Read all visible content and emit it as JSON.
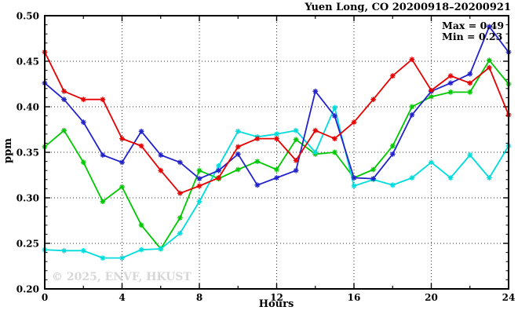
{
  "watermark": "© 2025, ENVF, HKUST",
  "chart_data": {
    "type": "line",
    "title": "Yuen Long, CO 20200918–20200921",
    "xlabel": "Hours",
    "ylabel": "ppm",
    "xlim": [
      0,
      24
    ],
    "ylim": [
      0.2,
      0.5
    ],
    "grid": "dotted lines at major ticks, on",
    "legend": "none",
    "annotations": {
      "max_label": "Max = 0.49",
      "min_label": "Min = 0.23"
    },
    "xticks": [
      0,
      4,
      8,
      12,
      16,
      20,
      24
    ],
    "xtick_labels": [
      "0",
      "4",
      "8",
      "12",
      "16",
      "20",
      "24"
    ],
    "xtick_minor": [
      2,
      6,
      10,
      14,
      18,
      22
    ],
    "yticks": [
      0.2,
      0.25,
      0.3,
      0.35,
      0.4,
      0.45,
      0.5
    ],
    "ytick_labels": [
      "0.20",
      "0.25",
      "0.30",
      "0.35",
      "0.40",
      "0.45",
      "0.50"
    ],
    "ytick_minor_step": 0.01,
    "x": [
      0,
      1,
      2,
      3,
      4,
      5,
      6,
      7,
      8,
      9,
      10,
      11,
      12,
      13,
      14,
      15,
      16,
      17,
      18,
      19,
      20,
      21,
      22,
      23,
      24
    ],
    "series": [
      {
        "name": "green",
        "color": "#00c800",
        "values": [
          0.356,
          0.374,
          0.339,
          0.296,
          0.312,
          0.27,
          0.244,
          0.278,
          0.33,
          0.321,
          0.331,
          0.34,
          0.331,
          0.364,
          0.348,
          0.35,
          0.322,
          0.331,
          0.357,
          0.4,
          0.411,
          0.416,
          0.416,
          0.451,
          0.425
        ]
      },
      {
        "name": "cyan",
        "color": "#00dcdc",
        "values": [
          0.243,
          0.242,
          0.242,
          0.234,
          0.234,
          0.243,
          0.244,
          0.261,
          0.296,
          0.335,
          0.373,
          0.367,
          0.37,
          0.374,
          0.35,
          0.399,
          0.313,
          0.32,
          0.314,
          0.322,
          0.339,
          0.322,
          0.347,
          0.322,
          0.357
        ]
      },
      {
        "name": "blue",
        "color": "#2222cc",
        "values": [
          0.426,
          0.408,
          0.383,
          0.347,
          0.339,
          0.373,
          0.347,
          0.339,
          0.321,
          0.33,
          0.348,
          0.314,
          0.322,
          0.33,
          0.417,
          0.39,
          0.322,
          0.321,
          0.348,
          0.391,
          0.417,
          0.426,
          0.436,
          0.488,
          0.46
        ]
      },
      {
        "name": "red",
        "color": "#e60000",
        "values": [
          0.46,
          0.417,
          0.408,
          0.408,
          0.365,
          0.357,
          0.33,
          0.305,
          0.313,
          0.322,
          0.356,
          0.365,
          0.365,
          0.341,
          0.374,
          0.365,
          0.383,
          0.408,
          0.434,
          0.452,
          0.418,
          0.434,
          0.426,
          0.443,
          0.391
        ]
      }
    ]
  }
}
